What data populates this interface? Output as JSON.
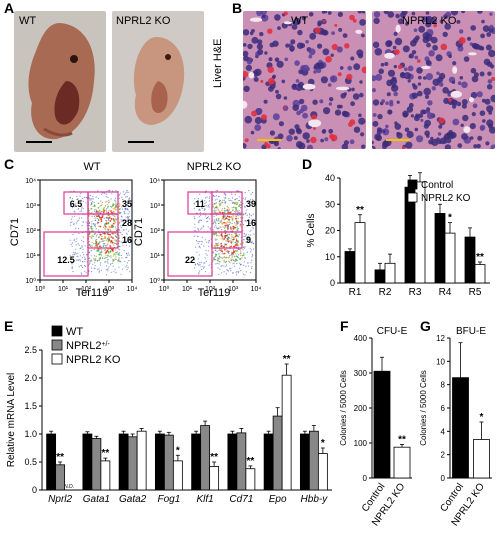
{
  "panels": {
    "a": {
      "letter": "A",
      "wt": "WT",
      "ko": "NPRL2 KO"
    },
    "b": {
      "letter": "B",
      "wt": "WT",
      "ko": "NPRL2 KO",
      "side": "Liver H&E"
    },
    "c": {
      "letter": "C",
      "wt": "WT",
      "ko": "NPRL2 KO",
      "xlabel": "Ter119",
      "ylabel": "CD71",
      "ticks": [
        "10⁰",
        "10¹",
        "10²",
        "10³",
        "10⁴"
      ],
      "wt_gates": [
        "6.5",
        "35",
        "28",
        "16",
        "12.5"
      ],
      "ko_gates": [
        "11",
        "39",
        "16",
        "9",
        "22"
      ]
    },
    "d": {
      "letter": "D"
    },
    "e": {
      "letter": "E"
    },
    "f": {
      "letter": "F"
    },
    "g": {
      "letter": "G"
    }
  },
  "chart_data": [
    {
      "id": "D",
      "type": "bar",
      "ylabel": "% Cells",
      "ylim": [
        0,
        40
      ],
      "yticks": [
        0,
        10,
        20,
        30,
        40
      ],
      "categories": [
        "R1",
        "R2",
        "R3",
        "R4",
        "R5"
      ],
      "series": [
        {
          "name": "Control",
          "color": "#000000",
          "values": [
            12,
            5,
            36.5,
            26.5,
            17.5
          ],
          "err": [
            1,
            2.5,
            4.5,
            3.5,
            3.5
          ]
        },
        {
          "name": "NPRL2 KO",
          "color": "#ffffff",
          "values": [
            23,
            7.5,
            38.5,
            19,
            7
          ],
          "err": [
            3,
            3.5,
            3.5,
            4,
            1
          ]
        }
      ],
      "annotations": [
        {
          "category": "R1",
          "text": "**"
        },
        {
          "category": "R4",
          "text": "*"
        },
        {
          "category": "R5",
          "text": "**"
        }
      ],
      "legend": "top-right"
    },
    {
      "id": "E",
      "type": "bar",
      "ylabel": "Relative mRNA Level",
      "ylim": [
        0,
        2.5
      ],
      "yticks": [
        "0",
        "0.5",
        "1.0",
        "1.5",
        "2.0",
        "2.5"
      ],
      "categories": [
        "Nprl2",
        "Gata1",
        "Gata2",
        "Fog1",
        "Klf1",
        "Cd71",
        "Epo",
        "Hbb-y"
      ],
      "series": [
        {
          "name": "WT",
          "color": "#000000",
          "values": [
            1.0,
            1.0,
            1.0,
            1.0,
            1.0,
            1.0,
            1.0,
            1.0
          ],
          "err": [
            0.05,
            0.04,
            0.05,
            0.05,
            0.05,
            0.05,
            0.05,
            0.05
          ]
        },
        {
          "name": "NPRL2+/-",
          "color": "#888888",
          "values": [
            0.45,
            0.92,
            0.95,
            0.98,
            1.15,
            1.02,
            1.32,
            1.05
          ],
          "err": [
            0.05,
            0.04,
            0.05,
            0.05,
            0.08,
            0.08,
            0.15,
            0.1
          ]
        },
        {
          "name": "NPRL2 KO",
          "color": "#ffffff",
          "values": [
            null,
            0.52,
            1.05,
            0.52,
            0.42,
            0.38,
            2.05,
            0.65
          ],
          "err": [
            0,
            0.05,
            0.05,
            0.1,
            0.08,
            0.05,
            0.2,
            0.1
          ]
        }
      ],
      "nd_label": "N.D.",
      "annotations": [
        {
          "category": "Nprl2",
          "series": 1,
          "text": "**"
        },
        {
          "category": "Gata1",
          "series": 2,
          "text": "**"
        },
        {
          "category": "Fog1",
          "series": 2,
          "text": "*"
        },
        {
          "category": "Klf1",
          "series": 2,
          "text": "**"
        },
        {
          "category": "Cd71",
          "series": 2,
          "text": "**"
        },
        {
          "category": "Epo",
          "series": 2,
          "text": "**"
        },
        {
          "category": "Hbb-y",
          "series": 2,
          "text": "*"
        }
      ],
      "legend_labels": [
        "WT",
        "NPRL2",
        "NPRL2 KO"
      ],
      "legend_sup": "+/-",
      "legend": "top-left"
    },
    {
      "id": "F",
      "type": "bar",
      "title": "CFU-E",
      "ylabel": "Colonies / 5000 Cells",
      "ylim": [
        0,
        400
      ],
      "yticks": [
        0,
        100,
        200,
        300,
        400
      ],
      "categories": [
        "Control",
        "NPRL2 KO"
      ],
      "values": [
        305,
        88
      ],
      "err": [
        40,
        8
      ],
      "colors": [
        "#000000",
        "#ffffff"
      ],
      "annotations": [
        {
          "category": "NPRL2 KO",
          "text": "**"
        }
      ]
    },
    {
      "id": "G",
      "type": "bar",
      "title": "BFU-E",
      "ylabel": "Colonies / 5000 Cells",
      "ylim": [
        0,
        12
      ],
      "yticks": [
        0,
        2,
        4,
        6,
        8,
        10,
        12
      ],
      "categories": [
        "Control",
        "NPRL2 KO"
      ],
      "values": [
        8.6,
        3.3
      ],
      "err": [
        3,
        1.5
      ],
      "colors": [
        "#000000",
        "#ffffff"
      ],
      "annotations": [
        {
          "category": "NPRL2 KO",
          "text": "*"
        }
      ]
    }
  ]
}
